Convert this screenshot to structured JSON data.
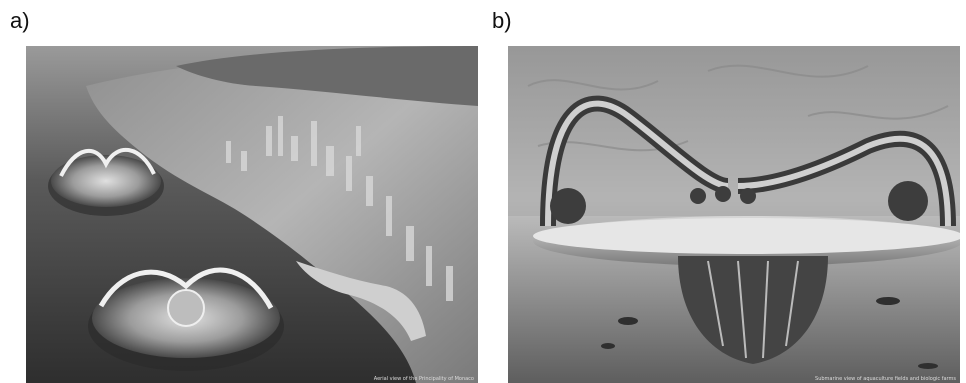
{
  "panels": [
    {
      "label": "a)",
      "caption": "Aerial view of the Principality of Monaco"
    },
    {
      "label": "b)",
      "caption": "Submarine view of aquaculture fields and biologic farms"
    }
  ]
}
